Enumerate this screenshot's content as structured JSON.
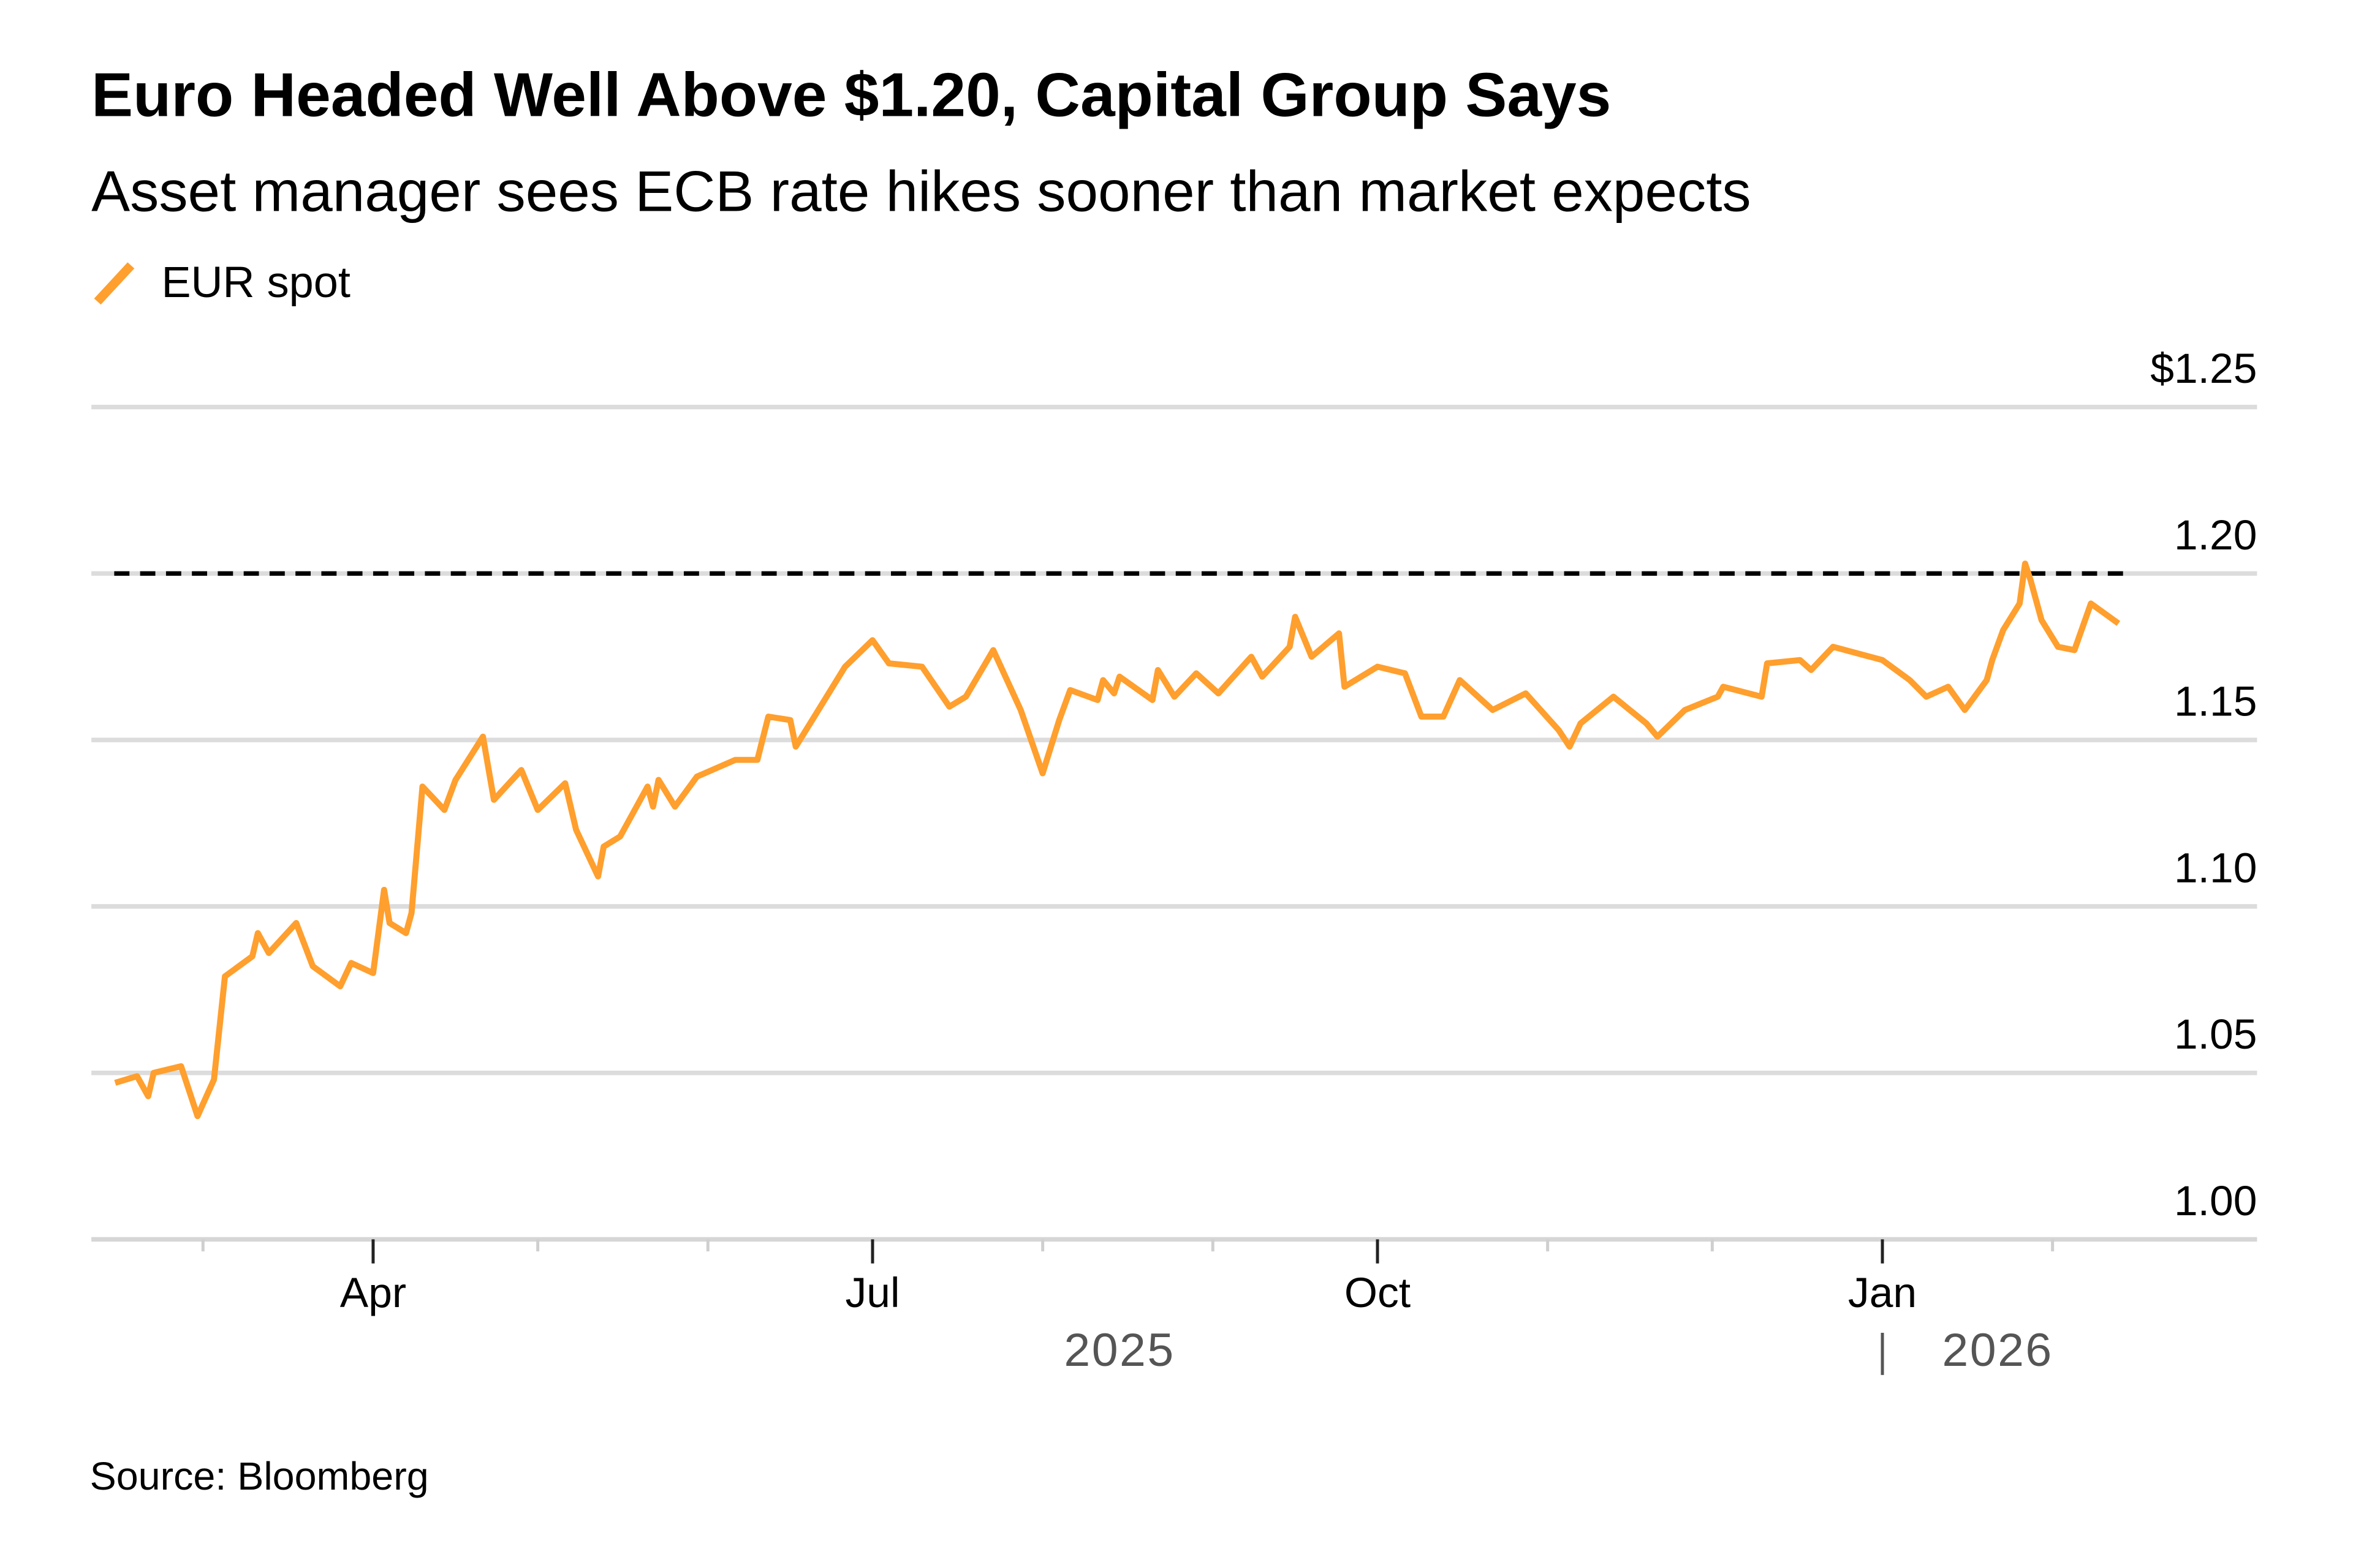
{
  "chart_data": {
    "type": "line",
    "title": "Euro Headed Well Above $1.20, Capital Group Says",
    "subtitle": "Asset manager sees ECB rate hikes sooner than market expects",
    "source": "Source: Bloomberg",
    "legend": "top-left",
    "grid": true,
    "series": [
      {
        "name": "EUR spot",
        "color": "#FF9F2E",
        "points": [
          [
            "2025-02-13",
            1.047
          ],
          [
            "2025-02-17",
            1.049
          ],
          [
            "2025-02-19",
            1.043
          ],
          [
            "2025-02-20",
            1.05
          ],
          [
            "2025-02-25",
            1.052
          ],
          [
            "2025-02-28",
            1.037
          ],
          [
            "2025-03-03",
            1.048
          ],
          [
            "2025-03-05",
            1.079
          ],
          [
            "2025-03-10",
            1.085
          ],
          [
            "2025-03-11",
            1.092
          ],
          [
            "2025-03-13",
            1.086
          ],
          [
            "2025-03-18",
            1.095
          ],
          [
            "2025-03-21",
            1.082
          ],
          [
            "2025-03-26",
            1.076
          ],
          [
            "2025-03-28",
            1.083
          ],
          [
            "2025-04-01",
            1.08
          ],
          [
            "2025-04-03",
            1.105
          ],
          [
            "2025-04-04",
            1.095
          ],
          [
            "2025-04-07",
            1.092
          ],
          [
            "2025-04-08",
            1.098
          ],
          [
            "2025-04-10",
            1.136
          ],
          [
            "2025-04-14",
            1.129
          ],
          [
            "2025-04-16",
            1.138
          ],
          [
            "2025-04-21",
            1.151
          ],
          [
            "2025-04-23",
            1.132
          ],
          [
            "2025-04-28",
            1.141
          ],
          [
            "2025-05-01",
            1.129
          ],
          [
            "2025-05-06",
            1.137
          ],
          [
            "2025-05-08",
            1.123
          ],
          [
            "2025-05-12",
            1.109
          ],
          [
            "2025-05-13",
            1.118
          ],
          [
            "2025-05-16",
            1.121
          ],
          [
            "2025-05-21",
            1.136
          ],
          [
            "2025-05-22",
            1.13
          ],
          [
            "2025-05-23",
            1.138
          ],
          [
            "2025-05-26",
            1.13
          ],
          [
            "2025-05-30",
            1.139
          ],
          [
            "2025-06-06",
            1.144
          ],
          [
            "2025-06-10",
            1.144
          ],
          [
            "2025-06-12",
            1.157
          ],
          [
            "2025-06-16",
            1.156
          ],
          [
            "2025-06-17",
            1.148
          ],
          [
            "2025-06-20",
            1.156
          ],
          [
            "2025-06-26",
            1.172
          ],
          [
            "2025-07-01",
            1.18
          ],
          [
            "2025-07-04",
            1.173
          ],
          [
            "2025-07-10",
            1.172
          ],
          [
            "2025-07-15",
            1.16
          ],
          [
            "2025-07-18",
            1.163
          ],
          [
            "2025-07-23",
            1.177
          ],
          [
            "2025-07-28",
            1.159
          ],
          [
            "2025-08-01",
            1.14
          ],
          [
            "2025-08-04",
            1.156
          ],
          [
            "2025-08-06",
            1.165
          ],
          [
            "2025-08-11",
            1.162
          ],
          [
            "2025-08-12",
            1.168
          ],
          [
            "2025-08-14",
            1.164
          ],
          [
            "2025-08-15",
            1.169
          ],
          [
            "2025-08-21",
            1.162
          ],
          [
            "2025-08-22",
            1.171
          ],
          [
            "2025-08-25",
            1.163
          ],
          [
            "2025-08-29",
            1.17
          ],
          [
            "2025-09-02",
            1.164
          ],
          [
            "2025-09-08",
            1.175
          ],
          [
            "2025-09-10",
            1.169
          ],
          [
            "2025-09-15",
            1.178
          ],
          [
            "2025-09-16",
            1.187
          ],
          [
            "2025-09-19",
            1.175
          ],
          [
            "2025-09-24",
            1.182
          ],
          [
            "2025-09-25",
            1.166
          ],
          [
            "2025-10-01",
            1.172
          ],
          [
            "2025-10-06",
            1.17
          ],
          [
            "2025-10-09",
            1.157
          ],
          [
            "2025-10-13",
            1.157
          ],
          [
            "2025-10-16",
            1.168
          ],
          [
            "2025-10-22",
            1.159
          ],
          [
            "2025-10-28",
            1.164
          ],
          [
            "2025-11-03",
            1.153
          ],
          [
            "2025-11-05",
            1.148
          ],
          [
            "2025-11-07",
            1.155
          ],
          [
            "2025-11-13",
            1.163
          ],
          [
            "2025-11-19",
            1.155
          ],
          [
            "2025-11-21",
            1.151
          ],
          [
            "2025-11-26",
            1.159
          ],
          [
            "2025-12-02",
            1.163
          ],
          [
            "2025-12-03",
            1.166
          ],
          [
            "2025-12-10",
            1.163
          ],
          [
            "2025-12-11",
            1.173
          ],
          [
            "2025-12-17",
            1.174
          ],
          [
            "2025-12-19",
            1.171
          ],
          [
            "2025-12-23",
            1.178
          ],
          [
            "2026-01-01",
            1.174
          ],
          [
            "2026-01-06",
            1.168
          ],
          [
            "2026-01-09",
            1.163
          ],
          [
            "2026-01-13",
            1.166
          ],
          [
            "2026-01-16",
            1.159
          ],
          [
            "2026-01-20",
            1.168
          ],
          [
            "2026-01-21",
            1.174
          ],
          [
            "2026-01-23",
            1.183
          ],
          [
            "2026-01-26",
            1.191
          ],
          [
            "2026-01-27",
            1.203
          ],
          [
            "2026-01-28",
            1.198
          ],
          [
            "2026-01-30",
            1.186
          ],
          [
            "2026-02-02",
            1.178
          ],
          [
            "2026-02-05",
            1.177
          ],
          [
            "2026-02-08",
            1.191
          ],
          [
            "2026-02-13",
            1.185
          ]
        ]
      }
    ],
    "reference_line": {
      "value": 1.2,
      "style": "dashed",
      "color": "#000000"
    },
    "y_axis": {
      "ylim": [
        1.0,
        1.25
      ],
      "ticks": [
        1.25,
        1.2,
        1.15,
        1.1,
        1.05,
        1.0
      ],
      "tick_labels": [
        "$1.25",
        "1.20",
        "1.15",
        "1.10",
        "1.05",
        "1.00"
      ],
      "position": "right"
    },
    "x_axis": {
      "xlim": [
        "2025-02-13",
        "2026-02-13"
      ],
      "minor_ticks": [
        "2025-03-01",
        "2025-04-01",
        "2025-05-01",
        "2025-06-01",
        "2025-07-01",
        "2025-08-01",
        "2025-09-01",
        "2025-10-01",
        "2025-11-01",
        "2025-12-01",
        "2026-01-01",
        "2026-02-01"
      ],
      "labels": [
        {
          "date": "2025-04-01",
          "text": "Apr"
        },
        {
          "date": "2025-07-01",
          "text": "Jul"
        },
        {
          "date": "2025-10-01",
          "text": "Oct"
        },
        {
          "date": "2026-01-01",
          "text": "Jan"
        }
      ],
      "years": [
        {
          "text": "2025",
          "center": "2025-08-15"
        },
        {
          "text": "2026",
          "center": "2026-01-22",
          "separator": "2026-01-01"
        }
      ]
    }
  }
}
